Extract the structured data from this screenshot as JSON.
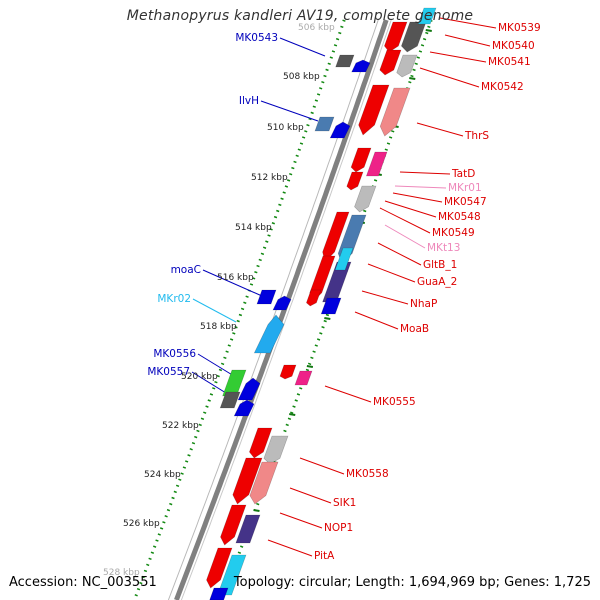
{
  "title": "Methanopyrus kandleri AV19, complete genome",
  "footer": {
    "accession": "Accession: NC_003551",
    "topology": "Topology: circular; Length: 1,694,969 bp; Genes: 1,725"
  },
  "kbp_ticks": [
    "506 kbp",
    "508 kbp",
    "510 kbp",
    "512 kbp",
    "514 kbp",
    "516 kbp",
    "518 kbp",
    "520 kbp",
    "522 kbp",
    "524 kbp",
    "526 kbp",
    "528 kbp"
  ],
  "genes_left": [
    "MK0543",
    "IlvH",
    "moaC",
    "MKr02",
    "MK0556",
    "MK0557"
  ],
  "genes_right": [
    "MK0539",
    "MK0540",
    "MK0541",
    "MK0542",
    "ThrS",
    "TatD",
    "MKr01",
    "MK0547",
    "MK0548",
    "MK0549",
    "MKt13",
    "GltB_1",
    "GuaA_2",
    "NhaP",
    "MoaB",
    "MK0555",
    "MK0558",
    "SIK1",
    "NOP1",
    "PitA"
  ],
  "colors": {
    "forward_label": "#0000bb",
    "reverse_label": "#dd0000",
    "rna_label_light": "#ee88bb",
    "rna_label_cyan": "#22bbee",
    "track_dots": "#118811",
    "backbone": "#808080"
  }
}
